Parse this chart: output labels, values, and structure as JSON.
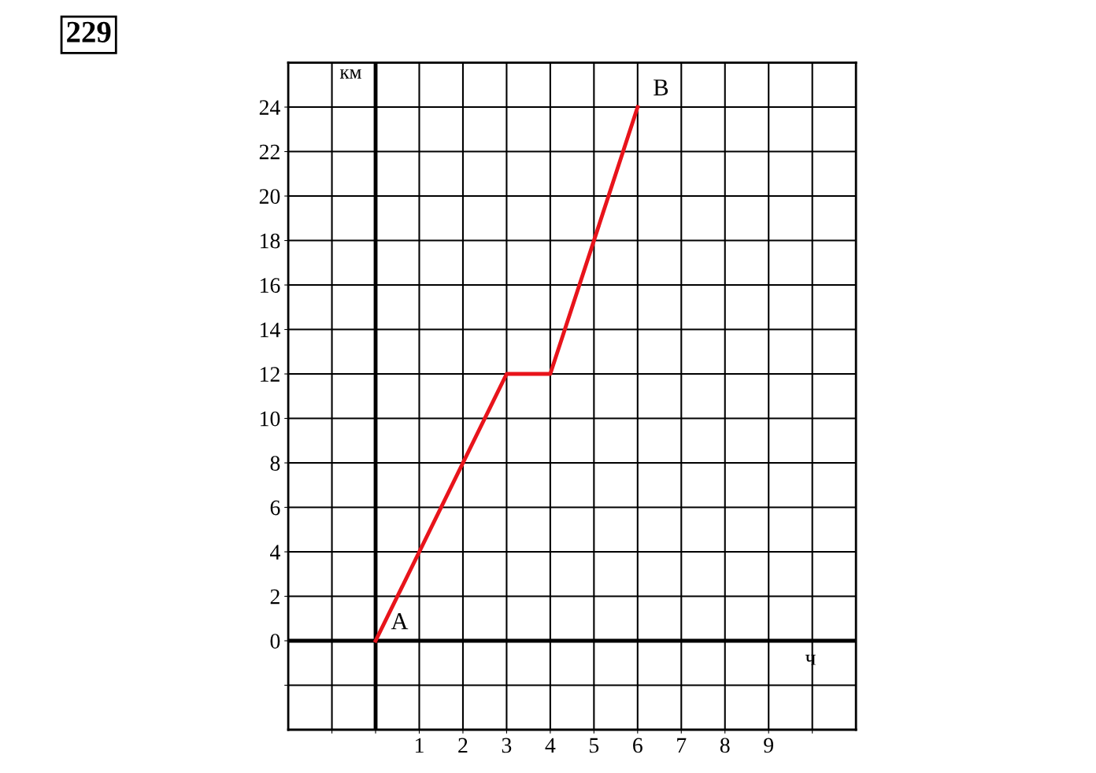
{
  "chart_data": {
    "type": "line",
    "title": "229",
    "xlabel": "ч",
    "ylabel": "км",
    "x": [
      0,
      3,
      4,
      6
    ],
    "series": [
      {
        "color": "#e8141b",
        "values": [
          0,
          12,
          12,
          24
        ]
      }
    ],
    "xlim": [
      -2,
      11
    ],
    "ylim": [
      -4,
      26
    ],
    "xticks": [
      {
        "value": -1,
        "label": null
      },
      {
        "value": 0,
        "label": null
      },
      1,
      2,
      3,
      4,
      5,
      6,
      7,
      8,
      9,
      {
        "value": 10,
        "label": null
      }
    ],
    "yticks": [
      {
        "value": -2,
        "label": null
      },
      0,
      2,
      4,
      6,
      8,
      10,
      12,
      14,
      16,
      18,
      20,
      22,
      24
    ],
    "grid": true,
    "marker": "none",
    "line_style": "solid",
    "annotations": [
      {
        "text": "A",
        "x": 0,
        "y": 0
      },
      {
        "text": "B",
        "x": 6,
        "y": 24
      }
    ]
  }
}
